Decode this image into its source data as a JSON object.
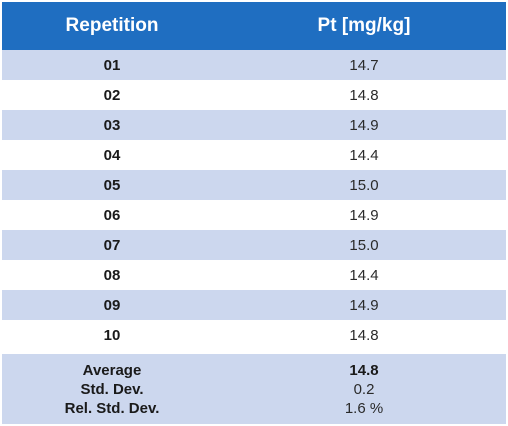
{
  "header": {
    "col1": "Repetition",
    "col2": "Pt [mg/kg]"
  },
  "rows": [
    {
      "rep": "01",
      "pt": "14.7"
    },
    {
      "rep": "02",
      "pt": "14.8"
    },
    {
      "rep": "03",
      "pt": "14.9"
    },
    {
      "rep": "04",
      "pt": "14.4"
    },
    {
      "rep": "05",
      "pt": "15.0"
    },
    {
      "rep": "06",
      "pt": "14.9"
    },
    {
      "rep": "07",
      "pt": "15.0"
    },
    {
      "rep": "08",
      "pt": "14.4"
    },
    {
      "rep": "09",
      "pt": "14.9"
    },
    {
      "rep": "10",
      "pt": "14.8"
    }
  ],
  "summary": {
    "average_label": "Average",
    "average_value": "14.8",
    "std_dev_label": "Std. Dev.",
    "std_dev_value": "0.2",
    "rsd_label": "Rel. Std. Dev.",
    "rsd_value": "1.6 %"
  },
  "colors": {
    "header_bg": "#1f6ec1",
    "shaded_row_bg": "#ccd7ee",
    "plain_row_bg": "#ffffff"
  }
}
